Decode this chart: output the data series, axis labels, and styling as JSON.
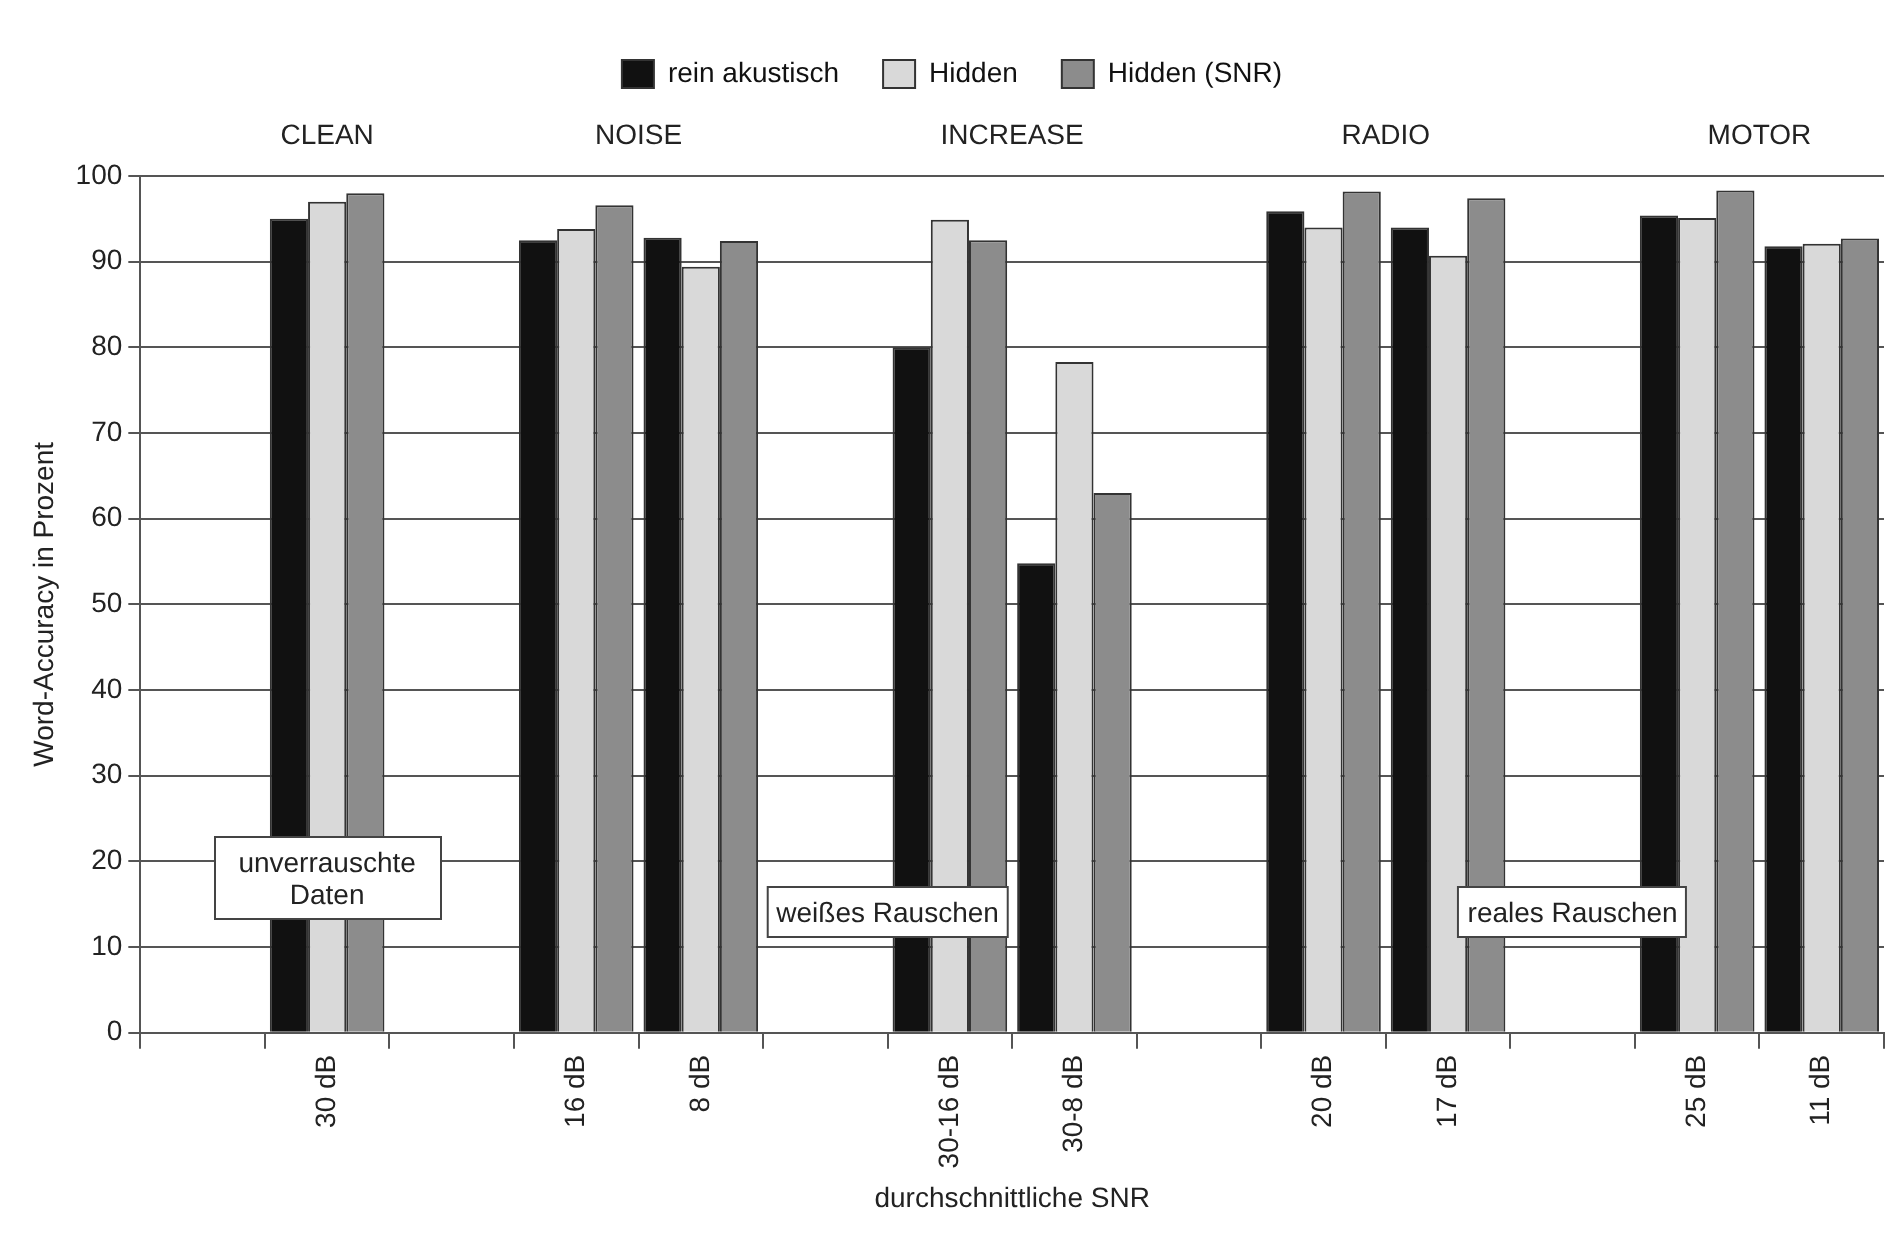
{
  "chart_data": {
    "type": "bar",
    "xlabel": "durchschnittliche SNR",
    "ylabel": "Word-Accuracy in Prozent",
    "categories": [
      null,
      "30 dB",
      null,
      "16 dB",
      "8 dB",
      null,
      "30-16 dB",
      "30-8 dB",
      null,
      "20 dB",
      "17 dB",
      null,
      "25 dB",
      "11 dB"
    ],
    "series": [
      {
        "name": "rein akustisch",
        "color": "#111111",
        "values": [
          null,
          95,
          null,
          92.5,
          92.8,
          null,
          80,
          54.8,
          null,
          95.9,
          94,
          null,
          95.4,
          91.8
        ]
      },
      {
        "name": "Hidden",
        "color": "#d9d9d9",
        "values": [
          null,
          97,
          null,
          93.8,
          89.4,
          null,
          94.9,
          78.3,
          null,
          94,
          90.7,
          null,
          95.1,
          92.1
        ]
      },
      {
        "name": "Hidden (SNR)",
        "color": "#8c8c8c",
        "values": [
          null,
          98,
          null,
          96.6,
          92.4,
          null,
          92.5,
          63,
          null,
          98.2,
          97.4,
          null,
          98.3,
          92.7
        ]
      }
    ],
    "ylim": [
      0,
      100
    ],
    "yticks": [
      0,
      10,
      20,
      30,
      40,
      50,
      60,
      70,
      80,
      90,
      100
    ],
    "grid": "y",
    "legend": "top",
    "annotations": [
      "CLEAN",
      "NOISE",
      "INCREASE",
      "RADIO",
      "MOTOR",
      "unverrauschte Daten",
      "weißes Rauschen",
      "reales Rauschen"
    ]
  }
}
